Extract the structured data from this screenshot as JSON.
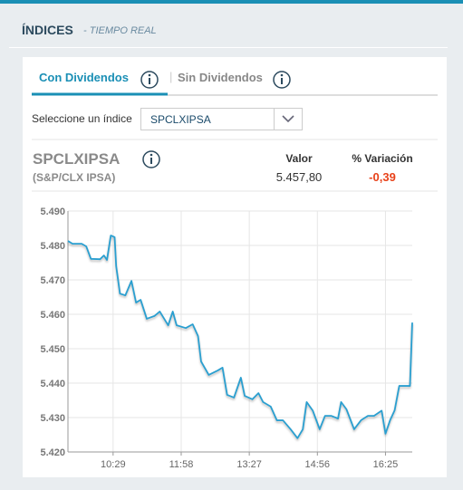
{
  "header": {
    "title": "ÍNDICES",
    "subtitle": "- TIEMPO REAL"
  },
  "tabs": [
    {
      "label": "Con Dividendos"
    },
    {
      "label": "Sin Dividendos"
    }
  ],
  "selector": {
    "label": "Seleccione un índice",
    "value": "SPCLXIPSA"
  },
  "index": {
    "symbol": "SPCLXIPSA",
    "name": "(S&P/CLX IPSA)",
    "value_header": "Valor",
    "value": "5.457,80",
    "change_header": "% Variación",
    "change": "-0,39"
  },
  "chart_data": {
    "type": "line",
    "x": [
      "09:30",
      "09:36",
      "09:48",
      "09:54",
      "10:00",
      "10:12",
      "10:17",
      "10:21",
      "10:26",
      "10:31",
      "10:33",
      "10:38",
      "10:45",
      "10:53",
      "10:59",
      "11:05",
      "11:13",
      "11:23",
      "11:30",
      "11:41",
      "11:47",
      "11:52",
      "12:04",
      "12:13",
      "12:20",
      "12:24",
      "12:34",
      "12:46",
      "12:52",
      "12:58",
      "13:07",
      "13:16",
      "13:21",
      "13:31",
      "13:39",
      "13:45",
      "13:55",
      "14:03",
      "14:11",
      "14:21",
      "14:30",
      "14:37",
      "14:42",
      "14:50",
      "14:59",
      "15:06",
      "15:14",
      "15:23",
      "15:27",
      "15:34",
      "15:44",
      "15:53",
      "16:02",
      "16:10",
      "16:20",
      "16:25",
      "16:31",
      "16:37",
      "16:43",
      "16:53",
      "16:57",
      "17:00"
    ],
    "series": [
      {
        "color": "#2a9fd0",
        "values": [
          5481.3,
          5480.5,
          5480.5,
          5479.7,
          5476.1,
          5476,
          5477.1,
          5475.8,
          5482.9,
          5482.4,
          5474,
          5466,
          5465.5,
          5469.7,
          5463.4,
          5464.2,
          5458.7,
          5459.5,
          5460.8,
          5456.8,
          5460.8,
          5456.8,
          5456,
          5457.1,
          5453.7,
          5446.3,
          5442.4,
          5443.7,
          5444.5,
          5436.6,
          5435.8,
          5441.6,
          5436.3,
          5435.3,
          5437.1,
          5434.5,
          5433.2,
          5429.2,
          5429.2,
          5426.6,
          5424,
          5426.6,
          5434.5,
          5432,
          5426.6,
          5430.5,
          5430.5,
          5429.7,
          5434.5,
          5432.4,
          5426.6,
          5429.2,
          5430.5,
          5430.5,
          5432,
          5425.3,
          5429.2,
          5432.1,
          5439.2,
          5439.2,
          5439.2,
          5457.6
        ]
      }
    ],
    "xlim": [
      "09:30",
      "17:00"
    ],
    "xticks": [
      "10:29",
      "11:58",
      "13:27",
      "14:56",
      "16:25"
    ],
    "ylim": [
      5420,
      5490
    ],
    "yticks": [
      {
        "value": 5420,
        "label": "5.420"
      },
      {
        "value": 5430,
        "label": "5.430"
      },
      {
        "value": 5440,
        "label": "5.440"
      },
      {
        "value": 5450,
        "label": "5.450"
      },
      {
        "value": 5460,
        "label": "5.460"
      },
      {
        "value": 5470,
        "label": "5.470"
      },
      {
        "value": 5480,
        "label": "5.480"
      },
      {
        "value": 5490,
        "label": "5.490"
      }
    ],
    "grid": true
  }
}
